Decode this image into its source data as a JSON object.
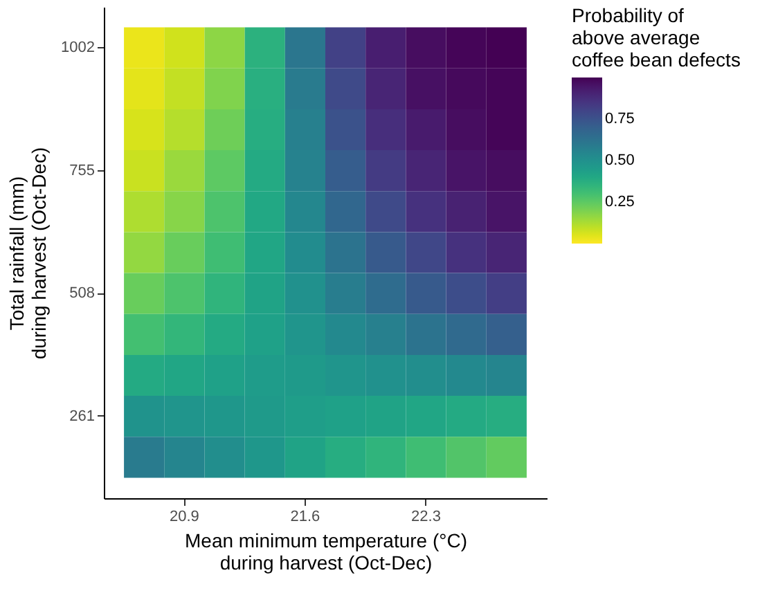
{
  "chart_data": {
    "type": "heatmap",
    "xlabel": "Mean minimum temperature (°C)\nduring harvest (Oct-Dec)",
    "ylabel": "Total rainfall (mm)\nduring harvest (Oct-Dec)",
    "legend_title": "Probability of\nabove average\ncoffee bean defects",
    "categories": [
      null,
      "20.9",
      null,
      null,
      "21.6",
      null,
      null,
      "22.3",
      null,
      null
    ],
    "y_categories": [
      "1002",
      null,
      null,
      "755",
      null,
      null,
      "508",
      null,
      null,
      "261",
      null
    ],
    "cells": [
      [
        0.03,
        0.07,
        0.17,
        0.36,
        0.61,
        0.81,
        0.92,
        0.97,
        0.99,
        1.0
      ],
      [
        0.04,
        0.09,
        0.19,
        0.37,
        0.59,
        0.78,
        0.9,
        0.96,
        0.98,
        0.99
      ],
      [
        0.06,
        0.11,
        0.22,
        0.38,
        0.57,
        0.75,
        0.87,
        0.93,
        0.97,
        0.99
      ],
      [
        0.08,
        0.15,
        0.25,
        0.39,
        0.56,
        0.71,
        0.83,
        0.9,
        0.95,
        0.97
      ],
      [
        0.12,
        0.18,
        0.28,
        0.4,
        0.54,
        0.67,
        0.78,
        0.86,
        0.91,
        0.95
      ],
      [
        0.16,
        0.23,
        0.31,
        0.41,
        0.52,
        0.62,
        0.72,
        0.79,
        0.86,
        0.9
      ],
      [
        0.23,
        0.28,
        0.35,
        0.42,
        0.5,
        0.58,
        0.65,
        0.72,
        0.77,
        0.82
      ],
      [
        0.3,
        0.34,
        0.39,
        0.43,
        0.48,
        0.53,
        0.57,
        0.62,
        0.66,
        0.7
      ],
      [
        0.39,
        0.41,
        0.43,
        0.45,
        0.46,
        0.48,
        0.5,
        0.51,
        0.53,
        0.55
      ],
      [
        0.49,
        0.48,
        0.47,
        0.46,
        0.44,
        0.43,
        0.42,
        0.41,
        0.39,
        0.38
      ],
      [
        0.59,
        0.55,
        0.51,
        0.47,
        0.42,
        0.38,
        0.35,
        0.31,
        0.27,
        0.24
      ]
    ],
    "clim": [
      0,
      1
    ],
    "cticks": [
      0.25,
      {
        "value": 0.5,
        "label": "0.50"
      },
      0.75
    ],
    "grid": false
  }
}
